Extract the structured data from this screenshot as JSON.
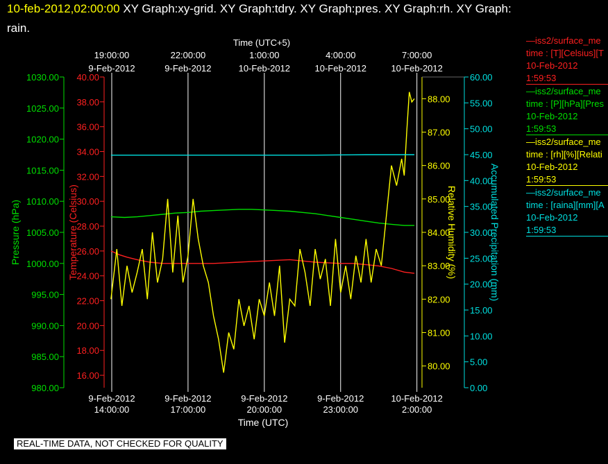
{
  "header": {
    "timestamp": "10-feb-2012,02:00:00",
    "graphs_line1": "XY Graph:xy-grid.  XY Graph:tdry.  XY Graph:pres.  XY Graph:rh.  XY Graph:",
    "graphs_line2": "rain."
  },
  "footer": {
    "quality_note": "REAL-TIME DATA, NOT CHECKED FOR QUALITY"
  },
  "legend": [
    {
      "line1": "—iss2/surface_me",
      "line2": "time : [T][Celsius][T",
      "line3": "10-Feb-2012",
      "line4": "1:59:53",
      "color": "#ff2020"
    },
    {
      "line1": "—iss2/surface_me",
      "line2": "time : [P][hPa][Pres",
      "line3": "10-Feb-2012",
      "line4": "1:59:53",
      "color": "#00e000"
    },
    {
      "line1": "—iss2/surface_me",
      "line2": "time : [rh][%][Relati",
      "line3": "10-Feb-2012",
      "line4": "1:59:53",
      "color": "#ffff00"
    },
    {
      "line1": "—iss2/surface_me",
      "line2": "time : [raina][mm][A",
      "line3": "10-Feb-2012",
      "line4": "1:59:53",
      "color": "#00e0e0"
    }
  ],
  "chart_data": {
    "type": "line",
    "top_axis_title": "Time (UTC+5)",
    "bottom_axis_title": "Time (UTC)",
    "x_range_hours": [
      13.7,
      26.2
    ],
    "x_ticks": [
      {
        "hour": 14,
        "bottom": [
          "9-Feb-2012",
          "14:00:00"
        ],
        "top": [
          "19:00:00",
          "9-Feb-2012"
        ]
      },
      {
        "hour": 17,
        "bottom": [
          "9-Feb-2012",
          "17:00:00"
        ],
        "top": [
          "22:00:00",
          "9-Feb-2012"
        ]
      },
      {
        "hour": 20,
        "bottom": [
          "9-Feb-2012",
          "20:00:00"
        ],
        "top": [
          "1:00:00",
          "10-Feb-2012"
        ]
      },
      {
        "hour": 23,
        "bottom": [
          "9-Feb-2012",
          "23:00:00"
        ],
        "top": [
          "4:00:00",
          "10-Feb-2012"
        ]
      },
      {
        "hour": 26,
        "bottom": [
          "10-Feb-2012",
          "2:00:00"
        ],
        "top": [
          "7:00:00",
          "10-Feb-2012"
        ]
      }
    ],
    "grid": true,
    "axes": {
      "pressure": {
        "label": "Pressure (hPa)",
        "color": "#00e000",
        "range": [
          980,
          1030
        ],
        "ticks": [
          "980.00",
          "985.00",
          "990.00",
          "995.00",
          "1000.00",
          "1005.00",
          "1010.00",
          "1015.00",
          "1020.00",
          "1025.00",
          "1030.00"
        ]
      },
      "temperature": {
        "label": "Temperature (Celsius)",
        "color": "#ff2020",
        "range": [
          15,
          40
        ],
        "ticks": [
          "16.00",
          "18.00",
          "20.00",
          "22.00",
          "24.00",
          "26.00",
          "28.00",
          "30.00",
          "32.00",
          "34.00",
          "36.00",
          "38.00",
          "40.00"
        ]
      },
      "humidity": {
        "label": "Relative Humidity (%)",
        "color": "#ffff00",
        "range": [
          79.35,
          88.65
        ],
        "ticks": [
          "80.00",
          "81.00",
          "82.00",
          "83.00",
          "84.00",
          "85.00",
          "86.00",
          "87.00",
          "88.00"
        ]
      },
      "precip": {
        "label": "Accumulated Precipitation (mm)",
        "color": "#00e0e0",
        "range": [
          0,
          60
        ],
        "ticks": [
          "0.00",
          "5.00",
          "10.00",
          "15.00",
          "20.00",
          "25.00",
          "30.00",
          "35.00",
          "40.00",
          "45.00",
          "50.00",
          "55.00",
          "60.00"
        ]
      }
    },
    "series": [
      {
        "name": "iss2/surface_me ... [T][Celsius]",
        "axis": "temperature",
        "color": "#ff2020",
        "x": [
          13.97,
          14.3,
          14.6,
          15.0,
          15.5,
          16.0,
          16.5,
          17.0,
          17.5,
          18.0,
          18.5,
          19.0,
          19.5,
          20.0,
          20.5,
          21.0,
          21.5,
          22.0,
          22.5,
          23.0,
          23.5,
          24.0,
          24.5,
          25.0,
          25.5,
          25.9
        ],
        "y": [
          26.0,
          25.7,
          25.5,
          25.3,
          25.1,
          25.0,
          25.0,
          25.0,
          25.0,
          25.0,
          25.05,
          25.1,
          25.15,
          25.2,
          25.25,
          25.3,
          25.2,
          25.1,
          25.05,
          25.0,
          25.0,
          24.9,
          24.8,
          24.6,
          24.3,
          24.2
        ]
      },
      {
        "name": "iss2/surface_me ... [P][hPa]",
        "axis": "pressure",
        "color": "#00e000",
        "x": [
          13.97,
          14.5,
          15.0,
          15.5,
          16.0,
          16.5,
          17.0,
          17.5,
          18.0,
          18.5,
          19.0,
          19.5,
          20.0,
          20.5,
          21.0,
          21.5,
          22.0,
          22.5,
          23.0,
          23.5,
          24.0,
          24.5,
          25.0,
          25.5,
          25.9
        ],
        "y": [
          1007.5,
          1007.4,
          1007.5,
          1007.7,
          1007.9,
          1008.1,
          1008.2,
          1008.4,
          1008.5,
          1008.6,
          1008.7,
          1008.7,
          1008.6,
          1008.5,
          1008.4,
          1008.2,
          1008.0,
          1007.7,
          1007.4,
          1007.1,
          1006.8,
          1006.5,
          1006.3,
          1006.1,
          1006.1
        ]
      },
      {
        "name": "iss2/surface_me ... [rh][%]",
        "axis": "humidity",
        "color": "#ffff00",
        "x": [
          13.97,
          14.2,
          14.4,
          14.6,
          14.8,
          15.0,
          15.2,
          15.4,
          15.6,
          15.8,
          16.0,
          16.2,
          16.4,
          16.6,
          16.8,
          17.0,
          17.2,
          17.4,
          17.6,
          17.8,
          18.0,
          18.2,
          18.4,
          18.6,
          18.8,
          19.0,
          19.2,
          19.4,
          19.6,
          19.8,
          20.0,
          20.2,
          20.4,
          20.6,
          20.8,
          21.0,
          21.2,
          21.4,
          21.6,
          21.8,
          22.0,
          22.2,
          22.4,
          22.6,
          22.8,
          23.0,
          23.2,
          23.4,
          23.6,
          23.8,
          24.0,
          24.2,
          24.4,
          24.6,
          24.8,
          25.0,
          25.2,
          25.4,
          25.5,
          25.6,
          25.7,
          25.8,
          25.9
        ],
        "y": [
          82.0,
          83.5,
          81.8,
          83.0,
          82.2,
          82.8,
          83.5,
          82.0,
          84.0,
          82.5,
          83.2,
          85.0,
          82.8,
          84.5,
          82.5,
          83.3,
          85.0,
          83.8,
          83.0,
          82.5,
          81.5,
          80.8,
          79.8,
          81.0,
          80.5,
          82.0,
          81.2,
          81.8,
          80.8,
          82.0,
          81.5,
          82.5,
          81.5,
          83.0,
          80.7,
          82.0,
          81.8,
          83.5,
          82.8,
          81.8,
          83.5,
          82.6,
          83.2,
          81.8,
          83.8,
          82.2,
          83.0,
          82.0,
          83.3,
          82.5,
          83.8,
          82.5,
          83.5,
          83.0,
          84.5,
          86.0,
          85.4,
          86.2,
          85.7,
          87.0,
          88.2,
          87.9,
          88.0
        ]
      },
      {
        "name": "iss2/surface_me ... [raina][mm]",
        "axis": "precip",
        "color": "#00e0e0",
        "x": [
          13.97,
          16.0,
          18.0,
          20.0,
          22.0,
          24.0,
          25.9
        ],
        "y": [
          44.9,
          44.9,
          44.9,
          44.9,
          44.9,
          45.0,
          45.0
        ]
      }
    ]
  }
}
